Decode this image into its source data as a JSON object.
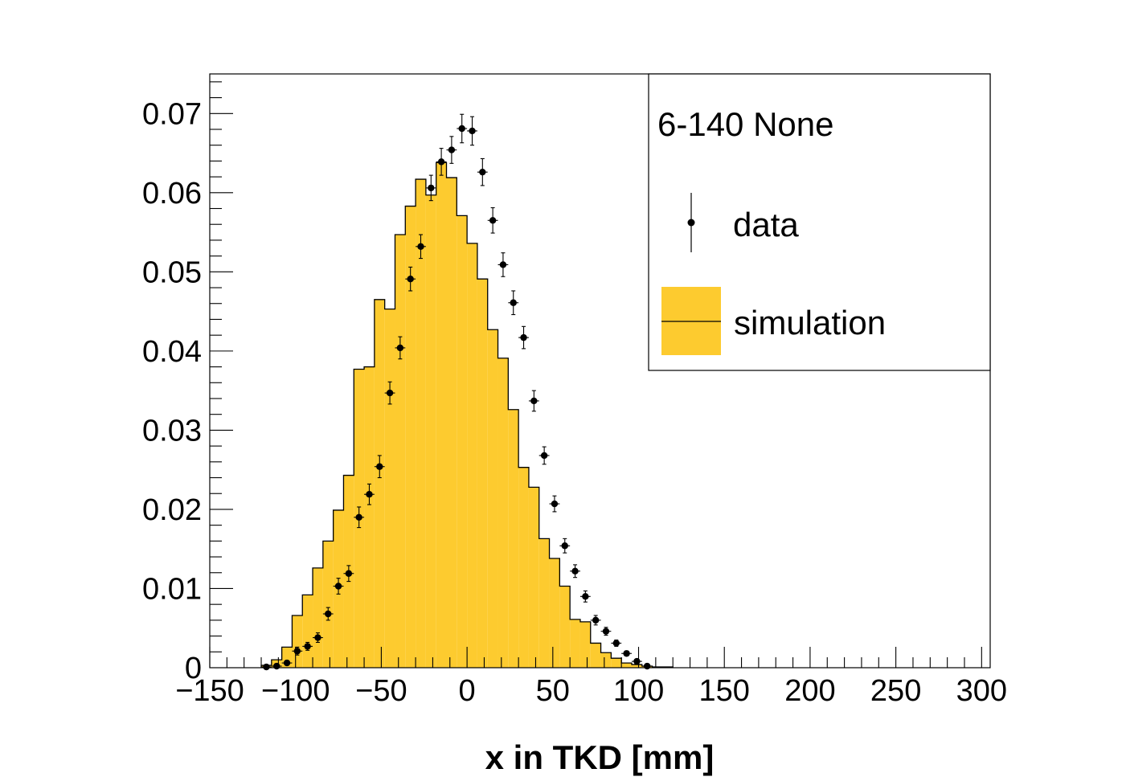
{
  "chart_data": {
    "type": "histogram",
    "xlabel": "x in TKD [mm]",
    "ylabel": "",
    "xlim": [
      -150,
      305
    ],
    "ylim": [
      0,
      0.075
    ],
    "x_ticks": [
      -150,
      -100,
      -50,
      0,
      50,
      100,
      150,
      200,
      250,
      300
    ],
    "x_tick_labels": [
      "−150",
      "−100",
      "−50",
      "0",
      "50",
      "100",
      "150",
      "200",
      "250",
      "300"
    ],
    "y_ticks": [
      0,
      0.01,
      0.02,
      0.03,
      0.04,
      0.05,
      0.06,
      0.07
    ],
    "y_tick_labels": [
      "0",
      "0.01",
      "0.02",
      "0.03",
      "0.04",
      "0.05",
      "0.06",
      "0.07"
    ],
    "legend": {
      "title": "6-140 None",
      "placement": "top-right",
      "entries": [
        {
          "label": "data",
          "style": "marker-with-error-bars"
        },
        {
          "label": "simulation",
          "style": "filled-histogram"
        }
      ]
    },
    "colors": {
      "simulation_fill": "#fdcb2f",
      "line": "#000000",
      "marker": "#000000"
    },
    "series": [
      {
        "name": "simulation",
        "bin_width": 6,
        "bin_start": -120,
        "values": [
          0.0003,
          0.001,
          0.0026,
          0.0066,
          0.0092,
          0.0126,
          0.016,
          0.0199,
          0.0243,
          0.0377,
          0.038,
          0.0465,
          0.0453,
          0.0547,
          0.0583,
          0.0617,
          0.0597,
          0.0638,
          0.0619,
          0.0571,
          0.0536,
          0.0491,
          0.0427,
          0.0391,
          0.0326,
          0.0253,
          0.0228,
          0.0163,
          0.0138,
          0.0103,
          0.0061,
          0.0058,
          0.0031,
          0.0019,
          0.0012,
          0.0006,
          0.0004,
          0.0002,
          0.0001,
          0.0001
        ]
      },
      {
        "name": "data",
        "x": [
          -117,
          -111,
          -105,
          -99,
          -93,
          -87,
          -81,
          -75,
          -69,
          -63,
          -57,
          -51,
          -45,
          -39,
          -33,
          -27,
          -21,
          -15,
          -9,
          -3,
          3,
          9,
          15,
          21,
          27,
          33,
          39,
          45,
          51,
          57,
          63,
          69,
          75,
          81,
          87,
          93,
          99,
          105
        ],
        "values": [
          0.0001,
          0.0002,
          0.0006,
          0.0021,
          0.0027,
          0.0038,
          0.0068,
          0.0103,
          0.0119,
          0.019,
          0.0219,
          0.0254,
          0.0347,
          0.0404,
          0.0491,
          0.0532,
          0.0606,
          0.0639,
          0.0654,
          0.0681,
          0.0678,
          0.0626,
          0.0565,
          0.0509,
          0.0461,
          0.0417,
          0.0337,
          0.0268,
          0.0207,
          0.0154,
          0.0122,
          0.009,
          0.006,
          0.0046,
          0.0031,
          0.0018,
          0.0008,
          0.0002
        ],
        "errors": [
          0.0001,
          0.0002,
          0.0003,
          0.0005,
          0.0005,
          0.0006,
          0.0008,
          0.001,
          0.001,
          0.0013,
          0.0013,
          0.0014,
          0.0014,
          0.0014,
          0.0015,
          0.0015,
          0.0016,
          0.0017,
          0.0017,
          0.0018,
          0.0018,
          0.0017,
          0.0016,
          0.0015,
          0.0015,
          0.0014,
          0.0013,
          0.0011,
          0.001,
          0.0009,
          0.0008,
          0.0007,
          0.0006,
          0.0005,
          0.0004,
          0.0003,
          0.0002,
          0.0001
        ]
      }
    ]
  }
}
